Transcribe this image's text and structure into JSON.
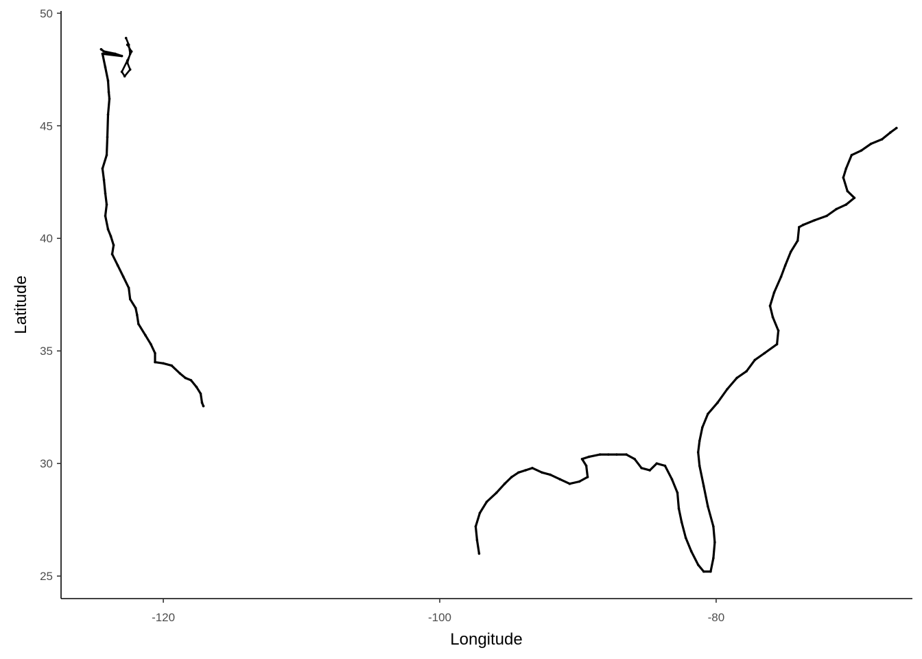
{
  "chart_data": {
    "type": "scatter",
    "title": "",
    "xlabel": "Longitude",
    "ylabel": "Latitude",
    "xlim": [
      -127.4,
      -65.8
    ],
    "ylim": [
      24.0,
      50.1
    ],
    "x_ticks": [
      -120,
      -100,
      -80
    ],
    "y_ticks": [
      25,
      30,
      35,
      40,
      45,
      50
    ],
    "x_tick_labels": [
      "-120",
      "-100",
      "-80"
    ],
    "y_tick_labels": [
      "25",
      "30",
      "35",
      "40",
      "45",
      "50"
    ],
    "grid": false,
    "legend": "none",
    "point_color": "#000000",
    "series": [
      {
        "values": [
          [
            -124.5,
            48.4
          ],
          [
            -124.3,
            48.3
          ],
          [
            -123.5,
            48.2
          ],
          [
            -123.0,
            48.1
          ],
          [
            -124.4,
            48.2
          ],
          [
            -124.2,
            47.6
          ],
          [
            -124.0,
            47.0
          ],
          [
            -123.95,
            46.5
          ],
          [
            -123.9,
            46.2
          ],
          [
            -124.0,
            45.5
          ],
          [
            -124.05,
            44.5
          ],
          [
            -124.1,
            43.7
          ],
          [
            -124.4,
            43.1
          ],
          [
            -124.3,
            42.6
          ],
          [
            -124.2,
            42.0
          ],
          [
            -124.1,
            41.5
          ],
          [
            -124.2,
            41.0
          ],
          [
            -124.0,
            40.4
          ],
          [
            -123.8,
            40.1
          ],
          [
            -123.6,
            39.7
          ],
          [
            -123.7,
            39.3
          ],
          [
            -123.3,
            38.8
          ],
          [
            -122.9,
            38.3
          ],
          [
            -122.5,
            37.8
          ],
          [
            -122.4,
            37.3
          ],
          [
            -122.0,
            36.9
          ],
          [
            -121.9,
            36.6
          ],
          [
            -121.8,
            36.2
          ],
          [
            -121.3,
            35.7
          ],
          [
            -120.9,
            35.3
          ],
          [
            -120.6,
            34.9
          ],
          [
            -120.6,
            34.5
          ],
          [
            -120.0,
            34.45
          ],
          [
            -119.4,
            34.35
          ],
          [
            -118.8,
            34.0
          ],
          [
            -118.4,
            33.8
          ],
          [
            -118.0,
            33.7
          ],
          [
            -117.6,
            33.4
          ],
          [
            -117.3,
            33.1
          ],
          [
            -117.2,
            32.7
          ],
          [
            -117.1,
            32.55
          ]
        ]
      },
      {
        "values": [
          [
            -122.7,
            48.9
          ],
          [
            -122.5,
            48.6
          ],
          [
            -122.4,
            48.2
          ],
          [
            -122.6,
            47.8
          ],
          [
            -122.4,
            47.5
          ],
          [
            -122.8,
            47.2
          ],
          [
            -123.0,
            47.4
          ],
          [
            -122.6,
            47.9
          ],
          [
            -122.3,
            48.3
          ],
          [
            -122.6,
            48.6
          ]
        ]
      },
      {
        "values": [
          [
            -97.15,
            26.0
          ],
          [
            -97.3,
            26.6
          ],
          [
            -97.4,
            27.2
          ],
          [
            -97.1,
            27.8
          ],
          [
            -96.6,
            28.3
          ],
          [
            -95.9,
            28.7
          ],
          [
            -95.3,
            29.1
          ],
          [
            -94.8,
            29.4
          ],
          [
            -94.3,
            29.6
          ],
          [
            -93.8,
            29.7
          ],
          [
            -93.3,
            29.8
          ],
          [
            -92.6,
            29.6
          ],
          [
            -92.0,
            29.5
          ],
          [
            -91.3,
            29.3
          ],
          [
            -90.6,
            29.1
          ],
          [
            -89.9,
            29.2
          ],
          [
            -89.3,
            29.4
          ],
          [
            -89.4,
            29.9
          ],
          [
            -89.7,
            30.2
          ],
          [
            -89.2,
            30.3
          ],
          [
            -88.4,
            30.4
          ],
          [
            -87.8,
            30.4
          ],
          [
            -87.2,
            30.4
          ],
          [
            -86.5,
            30.4
          ],
          [
            -85.9,
            30.2
          ],
          [
            -85.4,
            29.8
          ],
          [
            -84.8,
            29.7
          ],
          [
            -84.3,
            30.0
          ],
          [
            -83.7,
            29.9
          ],
          [
            -83.2,
            29.3
          ],
          [
            -82.8,
            28.7
          ],
          [
            -82.7,
            28.0
          ],
          [
            -82.5,
            27.4
          ],
          [
            -82.2,
            26.7
          ],
          [
            -81.8,
            26.1
          ],
          [
            -81.3,
            25.5
          ],
          [
            -80.9,
            25.2
          ],
          [
            -80.4,
            25.2
          ],
          [
            -80.2,
            25.8
          ],
          [
            -80.1,
            26.5
          ],
          [
            -80.2,
            27.2
          ],
          [
            -80.6,
            28.1
          ],
          [
            -80.9,
            29.0
          ],
          [
            -81.2,
            29.9
          ],
          [
            -81.3,
            30.5
          ],
          [
            -81.2,
            31.0
          ],
          [
            -81.0,
            31.6
          ],
          [
            -80.6,
            32.2
          ],
          [
            -79.9,
            32.7
          ],
          [
            -79.2,
            33.3
          ],
          [
            -78.5,
            33.8
          ],
          [
            -77.8,
            34.1
          ],
          [
            -77.2,
            34.6
          ],
          [
            -76.5,
            34.9
          ],
          [
            -75.6,
            35.3
          ],
          [
            -75.5,
            35.9
          ],
          [
            -75.9,
            36.5
          ],
          [
            -76.1,
            37.0
          ],
          [
            -75.8,
            37.6
          ],
          [
            -75.3,
            38.3
          ],
          [
            -75.0,
            38.8
          ],
          [
            -74.6,
            39.4
          ],
          [
            -74.1,
            39.9
          ],
          [
            -74.0,
            40.5
          ],
          [
            -73.7,
            40.6
          ],
          [
            -72.9,
            40.8
          ],
          [
            -72.0,
            41.0
          ],
          [
            -71.3,
            41.3
          ],
          [
            -70.6,
            41.5
          ],
          [
            -70.0,
            41.8
          ],
          [
            -70.5,
            42.1
          ],
          [
            -70.8,
            42.7
          ],
          [
            -70.6,
            43.1
          ],
          [
            -70.2,
            43.7
          ],
          [
            -69.5,
            43.9
          ],
          [
            -68.8,
            44.2
          ],
          [
            -68.0,
            44.4
          ],
          [
            -67.4,
            44.7
          ],
          [
            -66.95,
            44.9
          ]
        ]
      }
    ]
  }
}
